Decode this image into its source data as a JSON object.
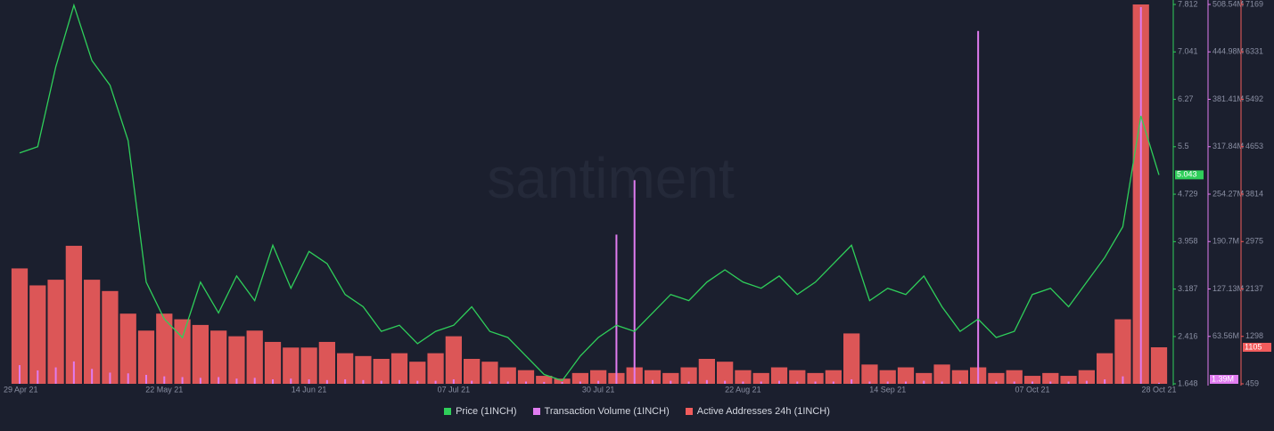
{
  "chart_data": {
    "type": "bar-line",
    "watermark": "santiment",
    "categories": [
      "29 Apr 21",
      null,
      null,
      null,
      null,
      null,
      null,
      null,
      "22 May 21",
      null,
      null,
      null,
      null,
      null,
      null,
      null,
      "14 Jun 21",
      null,
      null,
      null,
      null,
      null,
      null,
      null,
      "07 Jul 21",
      null,
      null,
      null,
      null,
      null,
      null,
      null,
      "30 Jul 21",
      null,
      null,
      null,
      null,
      null,
      null,
      null,
      "22 Aug 21",
      null,
      null,
      null,
      null,
      null,
      null,
      null,
      "14 Sep 21",
      null,
      null,
      null,
      null,
      null,
      null,
      null,
      "07 Oct 21",
      null,
      null,
      null,
      null,
      null,
      null,
      "28 Oct 21"
    ],
    "series": [
      {
        "name": "Price (1INCH)",
        "color": "#2fcf5a",
        "axis": "y",
        "values": [
          5.4,
          5.5,
          6.8,
          7.8,
          6.9,
          6.5,
          5.6,
          3.3,
          2.7,
          2.4,
          3.3,
          2.8,
          3.4,
          3.0,
          3.9,
          3.2,
          3.8,
          3.6,
          3.1,
          2.9,
          2.5,
          2.6,
          2.3,
          2.5,
          2.6,
          2.9,
          2.5,
          2.4,
          2.1,
          1.8,
          1.7,
          2.1,
          2.4,
          2.6,
          2.5,
          2.8,
          3.1,
          3.0,
          3.3,
          3.5,
          3.3,
          3.2,
          3.4,
          3.1,
          3.3,
          3.6,
          3.9,
          3.0,
          3.2,
          3.1,
          3.4,
          2.9,
          2.5,
          2.7,
          2.4,
          2.5,
          3.1,
          3.2,
          2.9,
          3.3,
          3.7,
          4.2,
          6.0,
          5.043
        ]
      },
      {
        "name": "Transaction Volume (1INCH)",
        "color": "#e07cf0",
        "axis": "y2",
        "last_label": "1.39M",
        "values": [
          25000000,
          18000000,
          22000000,
          30000000,
          20000000,
          15000000,
          14000000,
          12000000,
          10000000,
          9000000,
          8000000,
          9000000,
          7000000,
          8000000,
          6000000,
          7000000,
          6000000,
          5000000,
          6000000,
          5000000,
          4000000,
          5000000,
          4000000,
          4000000,
          6000000,
          4000000,
          3000000,
          3000000,
          3000000,
          2500000,
          2500000,
          3000000,
          4000000,
          200000000,
          273000000,
          5000000,
          4000000,
          3000000,
          5000000,
          4000000,
          3000000,
          3000000,
          4000000,
          3000000,
          3000000,
          3000000,
          6000000,
          3000000,
          3000000,
          3000000,
          4000000,
          3000000,
          3000000,
          473000000,
          3000000,
          3000000,
          3000000,
          3000000,
          3000000,
          4000000,
          6000000,
          10000000,
          505000000,
          1390000
        ]
      },
      {
        "name": "Active Addresses 24h (1INCH)",
        "color": "#f25c5c",
        "axis": "y3",
        "values": [
          2500,
          2200,
          2300,
          2900,
          2300,
          2100,
          1700,
          1400,
          1700,
          1600,
          1500,
          1400,
          1300,
          1400,
          1200,
          1100,
          1100,
          1200,
          1000,
          950,
          900,
          1000,
          850,
          1000,
          1300,
          900,
          850,
          750,
          700,
          600,
          550,
          650,
          700,
          650,
          750,
          700,
          650,
          750,
          900,
          850,
          700,
          650,
          750,
          700,
          650,
          700,
          1350,
          800,
          700,
          750,
          650,
          800,
          700,
          750,
          650,
          700,
          600,
          650,
          600,
          700,
          1000,
          1600,
          7169,
          1105
        ]
      }
    ],
    "ylim": [
      1.648,
      7.812
    ],
    "yticks": [
      1.648,
      2.416,
      3.187,
      3.958,
      4.729,
      5.5,
      6.27,
      7.041,
      7.812
    ],
    "y2lim": [
      0,
      508540000
    ],
    "y2ticks": [
      {
        "value": 63560000,
        "label": "63.56M"
      },
      {
        "value": 127130000,
        "label": "127.13M"
      },
      {
        "value": 190700000,
        "label": "190.7M"
      },
      {
        "value": 254270000,
        "label": "254.27M"
      },
      {
        "value": 317840000,
        "label": "317.84M"
      },
      {
        "value": 381410000,
        "label": "381.41M"
      },
      {
        "value": 444980000,
        "label": "444.98M"
      },
      {
        "value": 508540000,
        "label": "508.54M"
      }
    ],
    "y3lim": [
      459,
      7169
    ],
    "y3ticks": [
      459,
      1298,
      2137,
      2975,
      3814,
      4653,
      5492,
      6331,
      7169
    ]
  }
}
